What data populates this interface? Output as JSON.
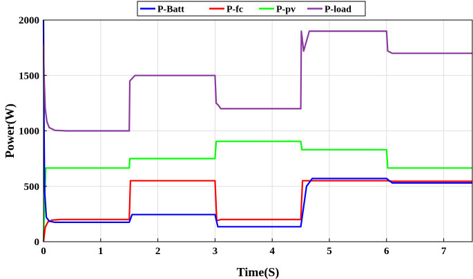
{
  "chart_data": {
    "type": "line",
    "xlabel": "Time(S)",
    "ylabel": "Power(W)",
    "xlim": [
      0,
      7.5
    ],
    "ylim": [
      0,
      2000
    ],
    "xticks": [
      0,
      1,
      2,
      3,
      4,
      5,
      6,
      7
    ],
    "yticks": [
      0,
      500,
      1000,
      1500,
      2000
    ],
    "xtick_labels": [
      "0",
      "1",
      "2",
      "3",
      "4",
      "5",
      "6",
      "7"
    ],
    "ytick_labels": [
      "0",
      "500",
      "1000",
      "1500",
      "2000"
    ],
    "grid": true,
    "legend_position": "top",
    "series": [
      {
        "name": "P-Batt",
        "color": "#0000ff",
        "x": [
          0,
          0.01,
          0.02,
          0.05,
          0.1,
          0.2,
          1.49,
          1.5,
          1.55,
          2.99,
          3.0,
          3.05,
          4.49,
          4.5,
          4.6,
          4.7,
          5.99,
          6.0,
          6.1,
          7.5
        ],
        "y": [
          2000,
          1000,
          450,
          220,
          185,
          175,
          175,
          175,
          245,
          245,
          245,
          135,
          135,
          135,
          500,
          570,
          570,
          570,
          530,
          530
        ]
      },
      {
        "name": "P-fc",
        "color": "#ff0000",
        "x": [
          0,
          0.03,
          0.08,
          0.15,
          0.3,
          1.49,
          1.5,
          1.52,
          2.99,
          3.0,
          3.03,
          3.1,
          4.49,
          4.5,
          4.53,
          5.99,
          6.0,
          6.1,
          7.5
        ],
        "y": [
          0,
          130,
          180,
          195,
          200,
          200,
          200,
          550,
          550,
          550,
          190,
          200,
          200,
          200,
          550,
          550,
          550,
          545,
          545
        ]
      },
      {
        "name": "P-pv",
        "color": "#00ff00",
        "x": [
          0,
          0.02,
          0.04,
          1.49,
          1.5,
          1.51,
          2.99,
          3.0,
          3.02,
          4.49,
          4.5,
          4.52,
          5.99,
          6.0,
          6.02,
          7.5
        ],
        "y": [
          0,
          400,
          665,
          665,
          665,
          750,
          750,
          750,
          905,
          905,
          905,
          830,
          830,
          830,
          665,
          665
        ]
      },
      {
        "name": "P-load",
        "color": "#8b3a9e",
        "x": [
          0,
          0.01,
          0.03,
          0.06,
          0.1,
          0.2,
          0.4,
          1.49,
          1.5,
          1.51,
          1.6,
          2.99,
          3.0,
          3.02,
          3.06,
          3.1,
          4.49,
          4.5,
          4.51,
          4.55,
          4.65,
          5.99,
          6.0,
          6.02,
          6.1,
          7.5
        ],
        "y": [
          1780,
          1500,
          1200,
          1080,
          1030,
          1005,
          1000,
          1000,
          1000,
          1450,
          1500,
          1500,
          1500,
          1250,
          1230,
          1200,
          1200,
          1200,
          1900,
          1720,
          1900,
          1900,
          1900,
          1720,
          1700,
          1700
        ]
      }
    ]
  }
}
